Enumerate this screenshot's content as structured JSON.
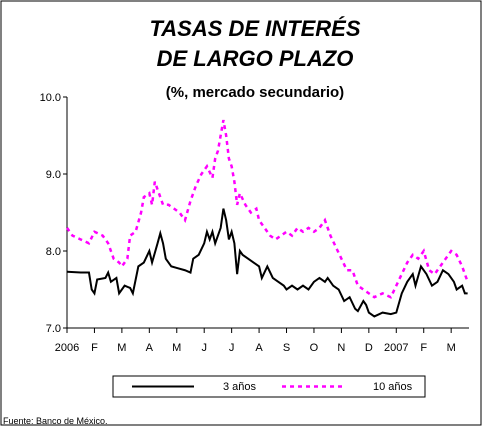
{
  "chart_data": {
    "type": "line",
    "title": [
      "TASAS DE INTERÉS",
      "DE LARGO PLAZO"
    ],
    "subtitle": "(%, mercado secundario)",
    "source": "Fuente: Banco de México.",
    "xlim": [
      0,
      14.65
    ],
    "xticks": [
      {
        "value": 0,
        "label": "2006"
      },
      {
        "value": 1,
        "label": "F"
      },
      {
        "value": 2,
        "label": "M"
      },
      {
        "value": 3,
        "label": "A"
      },
      {
        "value": 4,
        "label": "M"
      },
      {
        "value": 5,
        "label": "J"
      },
      {
        "value": 6,
        "label": "J"
      },
      {
        "value": 7,
        "label": "A"
      },
      {
        "value": 8,
        "label": "S"
      },
      {
        "value": 9,
        "label": "O"
      },
      {
        "value": 10,
        "label": "N"
      },
      {
        "value": 11,
        "label": "D"
      },
      {
        "value": 12,
        "label": "2007"
      },
      {
        "value": 13,
        "label": "F"
      },
      {
        "value": 14,
        "label": "M"
      }
    ],
    "ylim": [
      7,
      10
    ],
    "yticks": [
      {
        "value": 7,
        "label": "7.0"
      },
      {
        "value": 8,
        "label": "8.0"
      },
      {
        "value": 9,
        "label": "9.0"
      },
      {
        "value": 10,
        "label": "10.0"
      }
    ],
    "series": [
      {
        "name": "3 años",
        "color": "#000000",
        "dash": false,
        "x": [
          0,
          0.5,
          0.8,
          0.9,
          1.0,
          1.1,
          1.4,
          1.5,
          1.6,
          1.8,
          1.9,
          2.1,
          2.3,
          2.4,
          2.6,
          2.8,
          3.0,
          3.1,
          3.3,
          3.4,
          3.5,
          3.6,
          3.8,
          4.0,
          4.3,
          4.5,
          4.6,
          4.8,
          5.0,
          5.1,
          5.2,
          5.3,
          5.4,
          5.6,
          5.7,
          5.8,
          5.9,
          6.0,
          6.1,
          6.2,
          6.3,
          6.4,
          6.6,
          6.8,
          7.0,
          7.1,
          7.3,
          7.5,
          7.7,
          7.9,
          8.0,
          8.2,
          8.4,
          8.6,
          8.8,
          9.0,
          9.2,
          9.4,
          9.5,
          9.7,
          9.9,
          10.1,
          10.3,
          10.5,
          10.6,
          10.8,
          10.9,
          11.0,
          11.2,
          11.5,
          11.8,
          12.0,
          12.2,
          12.4,
          12.6,
          12.7,
          12.9,
          13.1,
          13.3,
          13.5,
          13.7,
          13.9,
          14.1,
          14.2,
          14.4,
          14.5,
          14.6
        ],
        "values": [
          7.73,
          7.72,
          7.72,
          7.5,
          7.45,
          7.63,
          7.65,
          7.72,
          7.6,
          7.65,
          7.45,
          7.55,
          7.52,
          7.45,
          7.8,
          7.85,
          8.0,
          7.85,
          8.1,
          8.23,
          8.1,
          7.9,
          7.8,
          7.78,
          7.75,
          7.72,
          7.9,
          7.95,
          8.1,
          8.25,
          8.15,
          8.25,
          8.1,
          8.3,
          8.55,
          8.4,
          8.15,
          8.25,
          8.1,
          7.7,
          8.0,
          7.95,
          7.9,
          7.85,
          7.8,
          7.65,
          7.8,
          7.65,
          7.6,
          7.55,
          7.5,
          7.55,
          7.5,
          7.55,
          7.5,
          7.6,
          7.65,
          7.6,
          7.65,
          7.55,
          7.5,
          7.35,
          7.4,
          7.25,
          7.22,
          7.35,
          7.3,
          7.2,
          7.15,
          7.2,
          7.18,
          7.2,
          7.45,
          7.6,
          7.7,
          7.55,
          7.8,
          7.7,
          7.55,
          7.6,
          7.75,
          7.7,
          7.6,
          7.5,
          7.55,
          7.45,
          7.45
        ]
      },
      {
        "name": "10 años",
        "color": "#ff00ff",
        "dash": true,
        "x": [
          0,
          0.2,
          0.5,
          0.8,
          1.0,
          1.3,
          1.5,
          1.7,
          1.9,
          2.0,
          2.2,
          2.3,
          2.5,
          2.7,
          2.8,
          3.0,
          3.1,
          3.2,
          3.3,
          3.5,
          3.7,
          3.9,
          4.1,
          4.3,
          4.5,
          4.7,
          4.9,
          5.1,
          5.3,
          5.4,
          5.5,
          5.6,
          5.7,
          5.8,
          5.9,
          6.0,
          6.1,
          6.2,
          6.3,
          6.5,
          6.7,
          6.9,
          7.0,
          7.2,
          7.4,
          7.6,
          7.8,
          8.0,
          8.2,
          8.4,
          8.6,
          8.8,
          9.0,
          9.2,
          9.4,
          9.6,
          9.8,
          10.0,
          10.2,
          10.4,
          10.6,
          10.8,
          11.0,
          11.2,
          11.5,
          11.8,
          12.0,
          12.2,
          12.4,
          12.6,
          12.8,
          13.0,
          13.2,
          13.4,
          13.6,
          13.8,
          14.0,
          14.2,
          14.4,
          14.6
        ],
        "values": [
          8.3,
          8.2,
          8.15,
          8.1,
          8.25,
          8.2,
          8.1,
          7.9,
          7.85,
          7.8,
          7.9,
          8.2,
          8.25,
          8.5,
          8.7,
          8.75,
          8.6,
          8.9,
          8.8,
          8.6,
          8.6,
          8.55,
          8.5,
          8.4,
          8.65,
          8.85,
          9.0,
          9.1,
          8.95,
          9.2,
          9.3,
          9.5,
          9.7,
          9.5,
          9.2,
          9.1,
          8.9,
          8.6,
          8.75,
          8.6,
          8.5,
          8.55,
          8.4,
          8.3,
          8.2,
          8.15,
          8.2,
          8.25,
          8.2,
          8.3,
          8.25,
          8.3,
          8.25,
          8.3,
          8.4,
          8.2,
          8.05,
          7.9,
          7.75,
          7.75,
          7.55,
          7.5,
          7.45,
          7.4,
          7.45,
          7.4,
          7.55,
          7.7,
          7.85,
          7.95,
          7.9,
          8.0,
          7.75,
          7.7,
          7.8,
          7.9,
          8.0,
          7.95,
          7.8,
          7.6
        ]
      }
    ],
    "legend": "bottom"
  }
}
